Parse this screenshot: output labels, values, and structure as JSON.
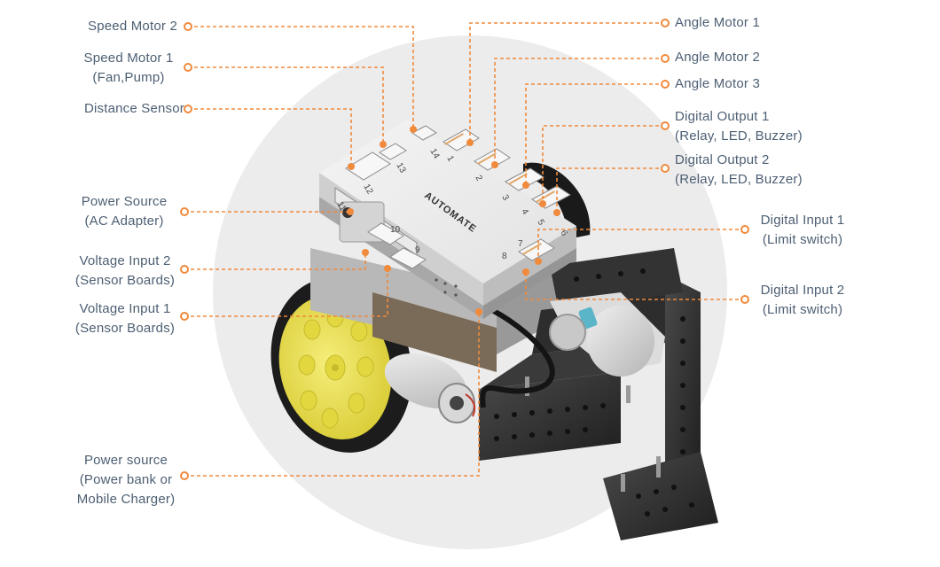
{
  "board": {
    "brand": "AUTOMATE",
    "port_numbers": [
      "14",
      "13",
      "12",
      "11",
      "10",
      "9",
      "1",
      "2",
      "3",
      "4",
      "5",
      "6",
      "7",
      "8"
    ]
  },
  "accent_color": "#f08a3c",
  "labels": {
    "speed_motor_2": [
      "Speed Motor 2"
    ],
    "speed_motor_1": [
      "Speed Motor 1",
      "(Fan,Pump)"
    ],
    "distance_sensor": [
      "Distance Sensor"
    ],
    "power_source_ac": [
      "Power Source",
      "(AC Adapter)"
    ],
    "voltage_input_2": [
      "Voltage Input 2",
      "(Sensor Boards)"
    ],
    "voltage_input_1": [
      "Voltage Input 1",
      "(Sensor Boards)"
    ],
    "power_source_bank": [
      "Power source",
      "(Power bank or",
      "Mobile Charger)"
    ],
    "angle_motor_1": [
      "Angle Motor 1"
    ],
    "angle_motor_2": [
      "Angle Motor 2"
    ],
    "angle_motor_3": [
      "Angle Motor 3"
    ],
    "digital_output_1": [
      "Digital Output 1",
      "(Relay, LED, Buzzer)"
    ],
    "digital_output_2": [
      "Digital Output 2",
      "(Relay, LED, Buzzer)"
    ],
    "digital_input_1": [
      "Digital Input 1",
      "(Limit switch)"
    ],
    "digital_input_2": [
      "Digital Input 2",
      "(Limit switch)"
    ]
  }
}
